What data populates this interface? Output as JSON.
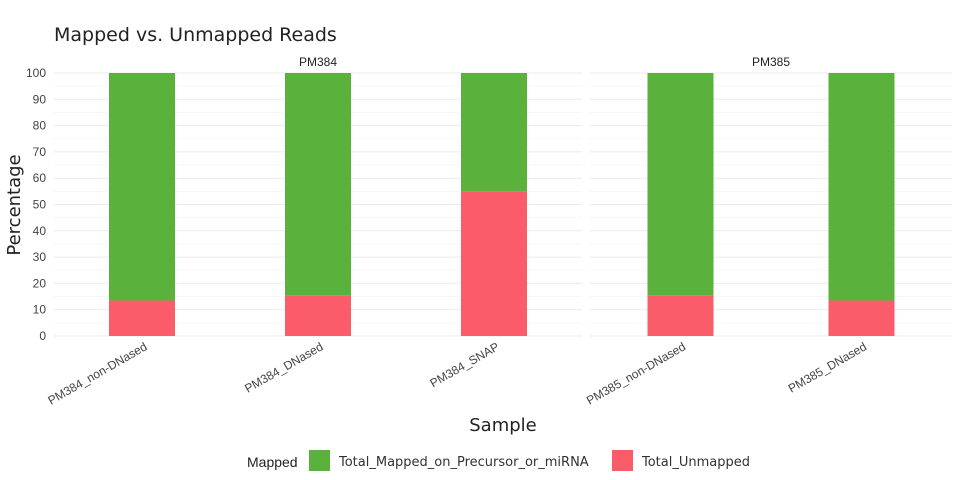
{
  "chart_data": {
    "type": "bar",
    "stacked": true,
    "title": "Mapped vs. Unmapped Reads",
    "xlabel": "Sample",
    "ylabel": "Percentage",
    "ylim": [
      0,
      100
    ],
    "yticks": [
      0,
      10,
      20,
      30,
      40,
      50,
      60,
      70,
      80,
      90,
      100
    ],
    "grid": true,
    "legend": {
      "title": "Mapped",
      "position": "bottom",
      "entries": [
        "Total_Mapped_on_Precursor_or_miRNA",
        "Total_Unmapped"
      ]
    },
    "colors": {
      "Total_Mapped_on_Precursor_or_miRNA": "#5ab23c",
      "Total_Unmapped": "#fa5c6a"
    },
    "facets": [
      {
        "name": "PM384",
        "categories": [
          "PM384_non-DNased",
          "PM384_DNased",
          "PM384_SNAP"
        ],
        "series": [
          {
            "name": "Total_Unmapped",
            "values": [
              13.5,
              15.5,
              55
            ]
          },
          {
            "name": "Total_Mapped_on_Precursor_or_miRNA",
            "values": [
              86.5,
              84.5,
              45
            ]
          }
        ]
      },
      {
        "name": "PM385",
        "categories": [
          "PM385_non-DNased",
          "PM385_DNased"
        ],
        "series": [
          {
            "name": "Total_Unmapped",
            "values": [
              15.5,
              13.5
            ]
          },
          {
            "name": "Total_Mapped_on_Precursor_or_miRNA",
            "values": [
              84.5,
              86.5
            ]
          }
        ]
      }
    ]
  }
}
